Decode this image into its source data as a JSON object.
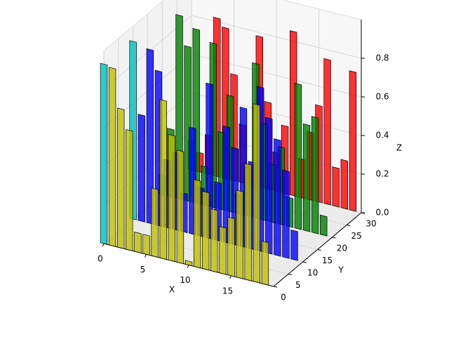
{
  "chart_data": {
    "type": "bar3d",
    "x_label": "X",
    "y_label": "Y",
    "z_label": "Z",
    "x": [
      0,
      1,
      2,
      3,
      4,
      5,
      6,
      7,
      8,
      9,
      10,
      11,
      12,
      13,
      14,
      15,
      16,
      17,
      18,
      19
    ],
    "first_color": "#00bfbf",
    "series": [
      {
        "plane": 30,
        "color": "#ff0000",
        "values": [
          0.15,
          0.1,
          0.2,
          0.82,
          0.78,
          0.55,
          0.3,
          0.1,
          0.78,
          0.45,
          0.2,
          0.35,
          0.85,
          0.2,
          0.35,
          0.5,
          0.75,
          0.2,
          0.25,
          0.72
        ]
      },
      {
        "plane": 20,
        "color": "#008000",
        "values": [
          0.1,
          0.35,
          0.95,
          0.8,
          0.9,
          0.2,
          0.85,
          0.4,
          0.6,
          0.1,
          0.25,
          0.8,
          0.5,
          0.3,
          0.4,
          0.15,
          0.75,
          0.55,
          0.6,
          0.1
        ]
      },
      {
        "plane": 10,
        "color": "#0000ff",
        "values": [
          0.92,
          0.55,
          0.9,
          0.8,
          0.35,
          0.4,
          0.2,
          0.55,
          0.25,
          0.8,
          0.3,
          0.6,
          0.5,
          0.72,
          0.45,
          0.85,
          0.7,
          0.6,
          0.45,
          0.15
        ]
      },
      {
        "plane": 0,
        "color": "#bfbf00",
        "values": [
          0.93,
          0.92,
          0.72,
          0.62,
          0.1,
          0.1,
          0.35,
          0.82,
          0.65,
          0.58,
          0.02,
          0.45,
          0.4,
          0.32,
          0.24,
          0.3,
          0.45,
          0.6,
          0.92,
          0.22
        ]
      }
    ],
    "xlim": [
      0,
      20
    ],
    "ylim": [
      0,
      30
    ],
    "zlim": [
      0,
      1
    ],
    "xticks": [
      0,
      5,
      10,
      15
    ],
    "yticks": [
      0,
      5,
      10,
      15,
      20,
      25,
      30
    ],
    "zticks": [
      {
        "value": 0,
        "label": "0.0"
      },
      {
        "value": 0.2,
        "label": "0.2"
      },
      {
        "value": 0.4,
        "label": "0.4"
      },
      {
        "value": 0.6,
        "label": "0.6"
      },
      {
        "value": 0.8,
        "label": "0.8"
      }
    ],
    "grid": true
  }
}
